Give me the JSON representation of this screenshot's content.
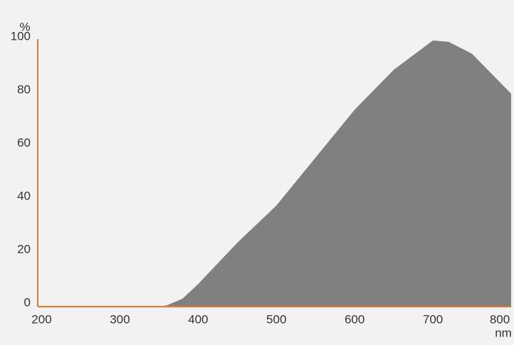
{
  "chart_data": {
    "type": "area",
    "y_label": "%",
    "x_label": "nm",
    "x": [
      195,
      300,
      350,
      360,
      380,
      400,
      450,
      500,
      550,
      600,
      650,
      700,
      720,
      750,
      800
    ],
    "values": [
      0,
      0,
      0,
      0.5,
      3,
      8.5,
      24,
      38,
      56,
      74,
      89,
      100,
      99.5,
      95,
      80
    ],
    "color": "#808080",
    "axis_color": "#e07a30",
    "xlim": [
      195,
      800
    ],
    "xticks": [
      200,
      300,
      400,
      500,
      600,
      700,
      800
    ],
    "ylim": [
      0,
      100
    ],
    "yticks": [
      0,
      20,
      40,
      60,
      80,
      100
    ],
    "grid": false
  }
}
